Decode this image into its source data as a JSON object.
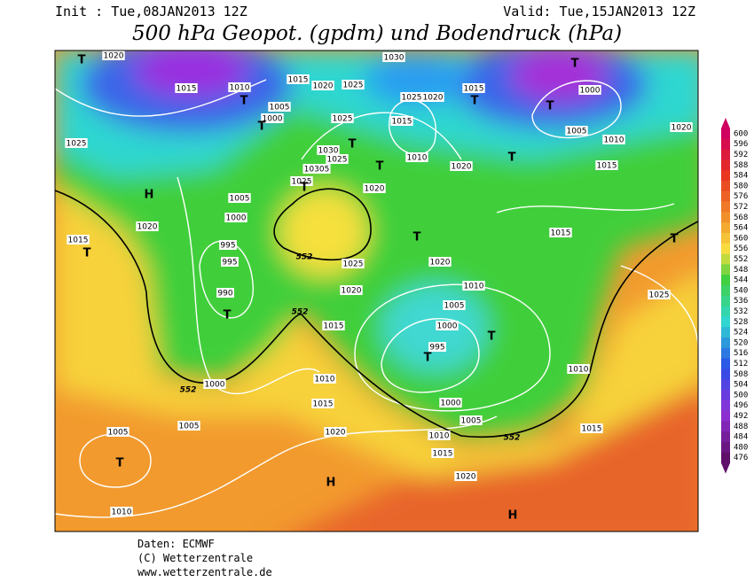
{
  "header": {
    "init": "Init : Tue,08JAN2013 12Z",
    "valid": "Valid: Tue,15JAN2013 12Z",
    "title": "500 hPa Geopot. (gpdm) und Bodendruck (hPa)"
  },
  "colorbar": {
    "levels": [
      600,
      596,
      592,
      588,
      584,
      580,
      576,
      572,
      568,
      564,
      560,
      556,
      552,
      548,
      544,
      540,
      536,
      532,
      528,
      524,
      520,
      516,
      512,
      508,
      504,
      500,
      496,
      492,
      488,
      484,
      480,
      476
    ]
  },
  "map": {
    "labels": [
      "T",
      "1020",
      "1030",
      "T",
      "1015",
      "1010",
      "T",
      "1015",
      "1020",
      "1025",
      "1025",
      "1020",
      "1015",
      "T",
      "1000",
      "T",
      "1005",
      "1000",
      "T",
      "1025",
      "1015",
      "1005",
      "1020",
      "1025",
      "T",
      "1030",
      "1025",
      "1010",
      "T",
      "1010",
      "1015",
      "1020",
      "10305",
      "T",
      "H",
      "1025",
      "1020",
      "T",
      "1005",
      "1000",
      "1020",
      "1015",
      "T",
      "T",
      "T",
      "1015",
      "995",
      "995",
      "552",
      "1025",
      "1020",
      "990",
      "T",
      "1020",
      "1010",
      "1005",
      "552",
      "1025",
      "1015",
      "1000",
      "T",
      "995",
      "T",
      "1010",
      "1000",
      "552",
      "1010",
      "1015",
      "1000",
      "1005",
      "1015",
      "1005",
      "1005",
      "1020",
      "1010",
      "552",
      "1015",
      "T",
      "H",
      "1020",
      "H",
      "1010"
    ]
  },
  "footer": {
    "source": "Daten: ECMWF",
    "copyright": "(C) Wetterzentrale",
    "url": "www.wetterzentrale.de"
  }
}
